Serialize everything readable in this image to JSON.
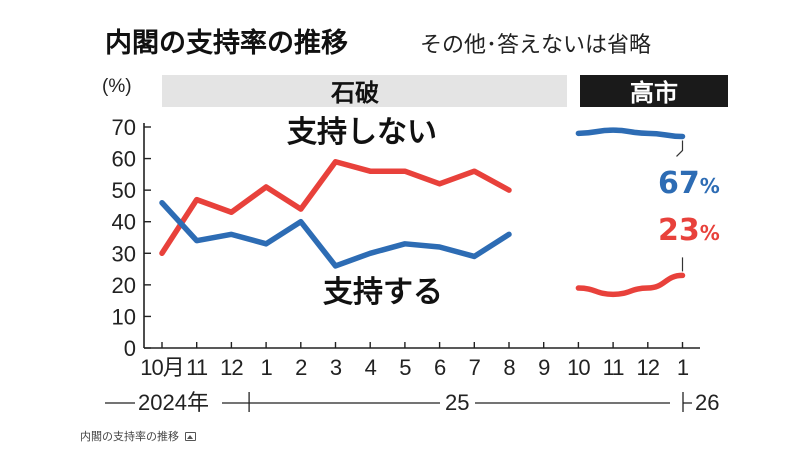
{
  "chart_data": {
    "type": "line",
    "title": "内閣の支持率の推移",
    "subtitle": "その他･答えないは省略",
    "ylabel": "(%)",
    "ylim": [
      0,
      70
    ],
    "yticks": [
      0,
      10,
      20,
      30,
      40,
      50,
      60,
      70
    ],
    "grid": false,
    "categories": [
      "10月",
      "11",
      "12",
      "1",
      "2",
      "3",
      "4",
      "5",
      "6",
      "7",
      "8",
      "9",
      "10",
      "11",
      "12",
      "1"
    ],
    "periods": [
      {
        "label": "石破",
        "start": 0,
        "end": 12
      },
      {
        "label": "高市",
        "start": 13,
        "end": 17
      }
    ],
    "years": [
      "2024年",
      "25",
      "26"
    ],
    "series": [
      {
        "name": "支持しない",
        "color": "#e8413b",
        "values": [
          30,
          47,
          43,
          51,
          44,
          59,
          56,
          56,
          52,
          56,
          50,
          null,
          19,
          17,
          19,
          23
        ]
      },
      {
        "name": "支持する",
        "color": "#2d6cb4",
        "values": [
          46,
          34,
          36,
          33,
          40,
          26,
          30,
          33,
          32,
          29,
          36,
          null,
          68,
          69,
          68,
          67
        ]
      }
    ],
    "annotations": [
      {
        "text": "67",
        "unit": "%",
        "series": "支持する",
        "color": "#2d6cb4"
      },
      {
        "text": "23",
        "unit": "%",
        "series": "支持しない",
        "color": "#e8413b"
      }
    ]
  },
  "caption": {
    "text": "内閣の支持率の推移",
    "icon": "image-icon"
  }
}
